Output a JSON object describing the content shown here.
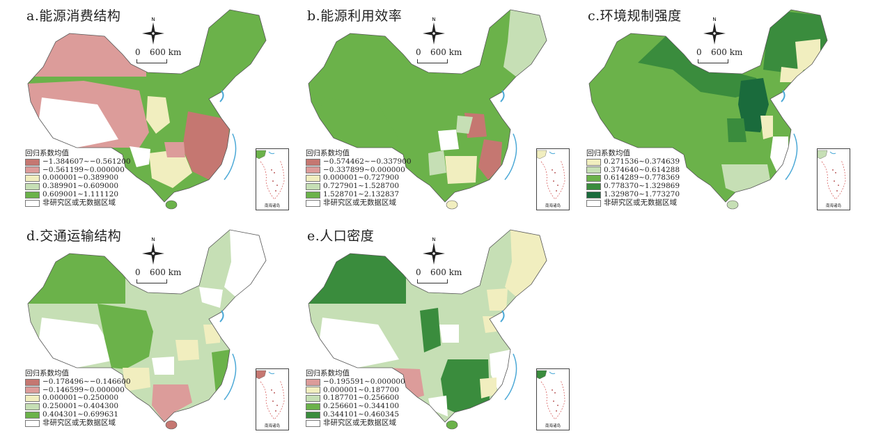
{
  "common": {
    "legend_title": "回归系数均值",
    "no_data_label": "非研究区或无数据区域",
    "scale_zero": "0",
    "scale_km": "600 km",
    "north": "N",
    "inset_label": "南海诸岛"
  },
  "colors": {
    "dark_red": "#c57771",
    "light_red": "#dc9c9a",
    "pale_yellow": "#f1eebf",
    "light_green": "#c6dfb5",
    "green": "#6bb24a",
    "dark_green": "#3a8c3d",
    "deepest_green": "#1a6b3c",
    "no_data": "#ffffff",
    "water": "#4aa8d6"
  },
  "panels": [
    {
      "id": "a",
      "title": "a.能源消费结构",
      "legend": [
        {
          "label": "−1.384607~−0.561200",
          "color": "#c57771"
        },
        {
          "label": "−0.561199~0.000000",
          "color": "#dc9c9a"
        },
        {
          "label": "0.000001~0.389900",
          "color": "#f1eebf"
        },
        {
          "label": "0.389901~0.609000",
          "color": "#c6dfb5"
        },
        {
          "label": "0.609001~1.111120",
          "color": "#6bb24a"
        }
      ]
    },
    {
      "id": "b",
      "title": "b.能源利用效率",
      "legend": [
        {
          "label": "−0.574462~−0.337900",
          "color": "#c57771"
        },
        {
          "label": "−0.337899~0.000000",
          "color": "#dc9c9a"
        },
        {
          "label": "0.000001~0.727900",
          "color": "#f1eebf"
        },
        {
          "label": "0.727901~1.528700",
          "color": "#c6dfb5"
        },
        {
          "label": "1.528701~2.132837",
          "color": "#6bb24a"
        }
      ]
    },
    {
      "id": "c",
      "title": "c.环境规制强度",
      "legend": [
        {
          "label": "0.271536~0.374639",
          "color": "#f1eebf"
        },
        {
          "label": "0.374640~0.614288",
          "color": "#c6dfb5"
        },
        {
          "label": "0.614289~0.778369",
          "color": "#6bb24a"
        },
        {
          "label": "0.778370~1.329869",
          "color": "#3a8c3d"
        },
        {
          "label": "1.329870~1.773270",
          "color": "#1a6b3c"
        }
      ]
    },
    {
      "id": "d",
      "title": "d.交通运输结构",
      "legend": [
        {
          "label": "−0.178496~−0.146600",
          "color": "#c57771"
        },
        {
          "label": "−0.146599~0.000000",
          "color": "#dc9c9a"
        },
        {
          "label": "0.000001~0.250000",
          "color": "#f1eebf"
        },
        {
          "label": "0.250001~0.404300",
          "color": "#c6dfb5"
        },
        {
          "label": "0.404301~0.699631",
          "color": "#6bb24a"
        }
      ]
    },
    {
      "id": "e",
      "title": "e.人口密度",
      "legend": [
        {
          "label": "−0.195591~0.000000",
          "color": "#dc9c9a"
        },
        {
          "label": "0.000001~0.187700",
          "color": "#f1eebf"
        },
        {
          "label": "0.187701~0.256600",
          "color": "#c6dfb5"
        },
        {
          "label": "0.256601~0.344100",
          "color": "#6bb24a"
        },
        {
          "label": "0.344101~0.460345",
          "color": "#3a8c3d"
        }
      ]
    }
  ]
}
